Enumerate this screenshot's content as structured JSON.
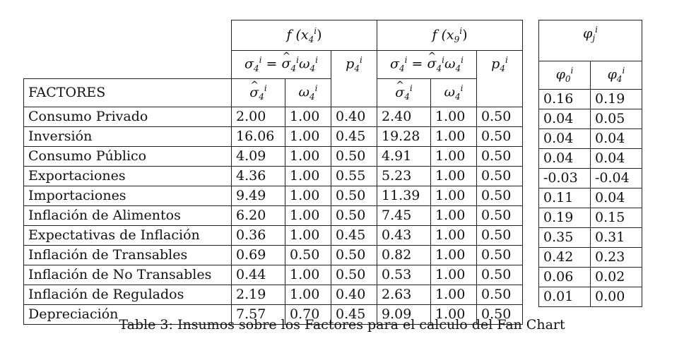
{
  "header": {
    "group1": "f (x",
    "group1_sub": "4",
    "group2": "f (x",
    "group2_sub": "9",
    "sigma_eq": "σ",
    "p_label": "p",
    "sub4": "4",
    "sup_i": "i",
    "factores": "FACTORES",
    "sigma_hat": "σ",
    "omega": "ω",
    "phi_j": "φ",
    "phi_j_sub": "j",
    "phi0_sub": "0",
    "phi4_sub": "4",
    "equals": " = "
  },
  "rows": [
    {
      "name": "Consumo Privado",
      "v": [
        "2.00",
        "1.00",
        "0.40",
        "2.40",
        "1.00",
        "0.50"
      ],
      "phi": [
        "0.16",
        "0.19"
      ]
    },
    {
      "name": "Inversión",
      "v": [
        "16.06",
        "1.00",
        "0.45",
        "19.28",
        "1.00",
        "0.50"
      ],
      "phi": [
        "0.04",
        "0.05"
      ]
    },
    {
      "name": "Consumo Público",
      "v": [
        "4.09",
        "1.00",
        "0.50",
        "4.91",
        "1.00",
        "0.50"
      ],
      "phi": [
        "0.04",
        "0.04"
      ]
    },
    {
      "name": "Exportaciones",
      "v": [
        "4.36",
        "1.00",
        "0.55",
        "5.23",
        "1.00",
        "0.50"
      ],
      "phi": [
        "0.04",
        "0.04"
      ]
    },
    {
      "name": "Importaciones",
      "v": [
        "9.49",
        "1.00",
        "0.50",
        "11.39",
        "1.00",
        "0.50"
      ],
      "phi": [
        "-0.03",
        "-0.04"
      ]
    },
    {
      "name": "Inflación de Alimentos",
      "v": [
        "6.20",
        "1.00",
        "0.50",
        "7.45",
        "1.00",
        "0.50"
      ],
      "phi": [
        "0.11",
        "0.04"
      ]
    },
    {
      "name": "Expectativas de Inflación",
      "v": [
        "0.36",
        "1.00",
        "0.45",
        "0.43",
        "1.00",
        "0.50"
      ],
      "phi": [
        "0.19",
        "0.15"
      ]
    },
    {
      "name": "Inflación de Transables",
      "v": [
        "0.69",
        "0.50",
        "0.50",
        "0.82",
        "1.00",
        "0.50"
      ],
      "phi": [
        "0.35",
        "0.31"
      ]
    },
    {
      "name": "Inflación de No Transables",
      "v": [
        "0.44",
        "1.00",
        "0.50",
        "0.53",
        "1.00",
        "0.50"
      ],
      "phi": [
        "0.42",
        "0.23"
      ]
    },
    {
      "name": "Inflación de Regulados",
      "v": [
        "2.19",
        "1.00",
        "0.40",
        "2.63",
        "1.00",
        "0.50"
      ],
      "phi": [
        "0.06",
        "0.02"
      ]
    },
    {
      "name": "Depreciación",
      "v": [
        "7.57",
        "0.70",
        "0.45",
        "9.09",
        "1.00",
        "0.50"
      ],
      "phi": [
        "0.01",
        "0.00"
      ]
    }
  ],
  "caption": "Table 3: Insumos sobre los Factores para el calculo del Fan Chart"
}
